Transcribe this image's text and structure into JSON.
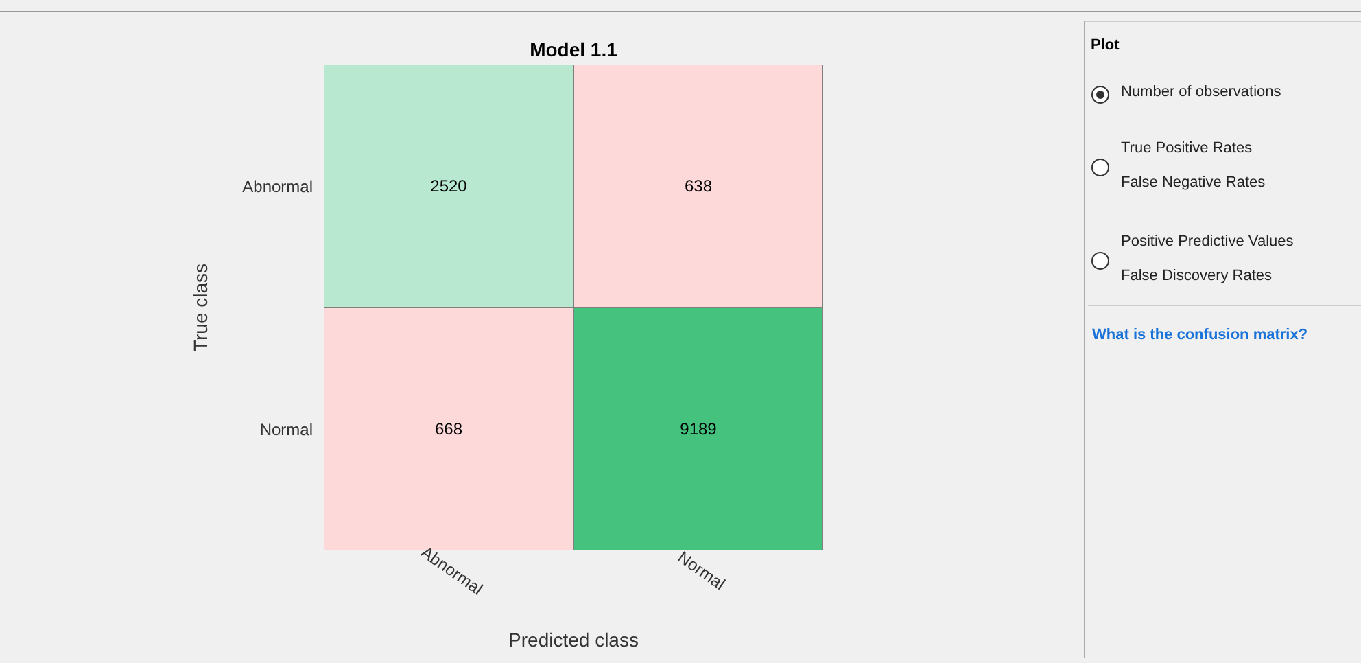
{
  "chart_data": [
    {
      "type": "heatmap",
      "title": "Model 1.1",
      "xlabel": "Predicted class",
      "ylabel": "True class",
      "categories": [
        "Abnormal",
        "Normal"
      ],
      "y_categories": [
        "Abnormal",
        "Normal"
      ],
      "cells": [
        [
          2520,
          638
        ],
        [
          668,
          9189
        ]
      ],
      "colors": [
        "#b9e8d1",
        "#fdd9d9",
        "#fdd9d9",
        "#44c27e"
      ],
      "data_labels": true
    },
    {
      "type": "other",
      "title": "Plot",
      "annotations": [
        "Number of observations",
        "True Positive Rates",
        "False Negative Rates",
        "Positive Predictive Values",
        "False Discovery Rates",
        "What is the confusion matrix?"
      ]
    }
  ]
}
